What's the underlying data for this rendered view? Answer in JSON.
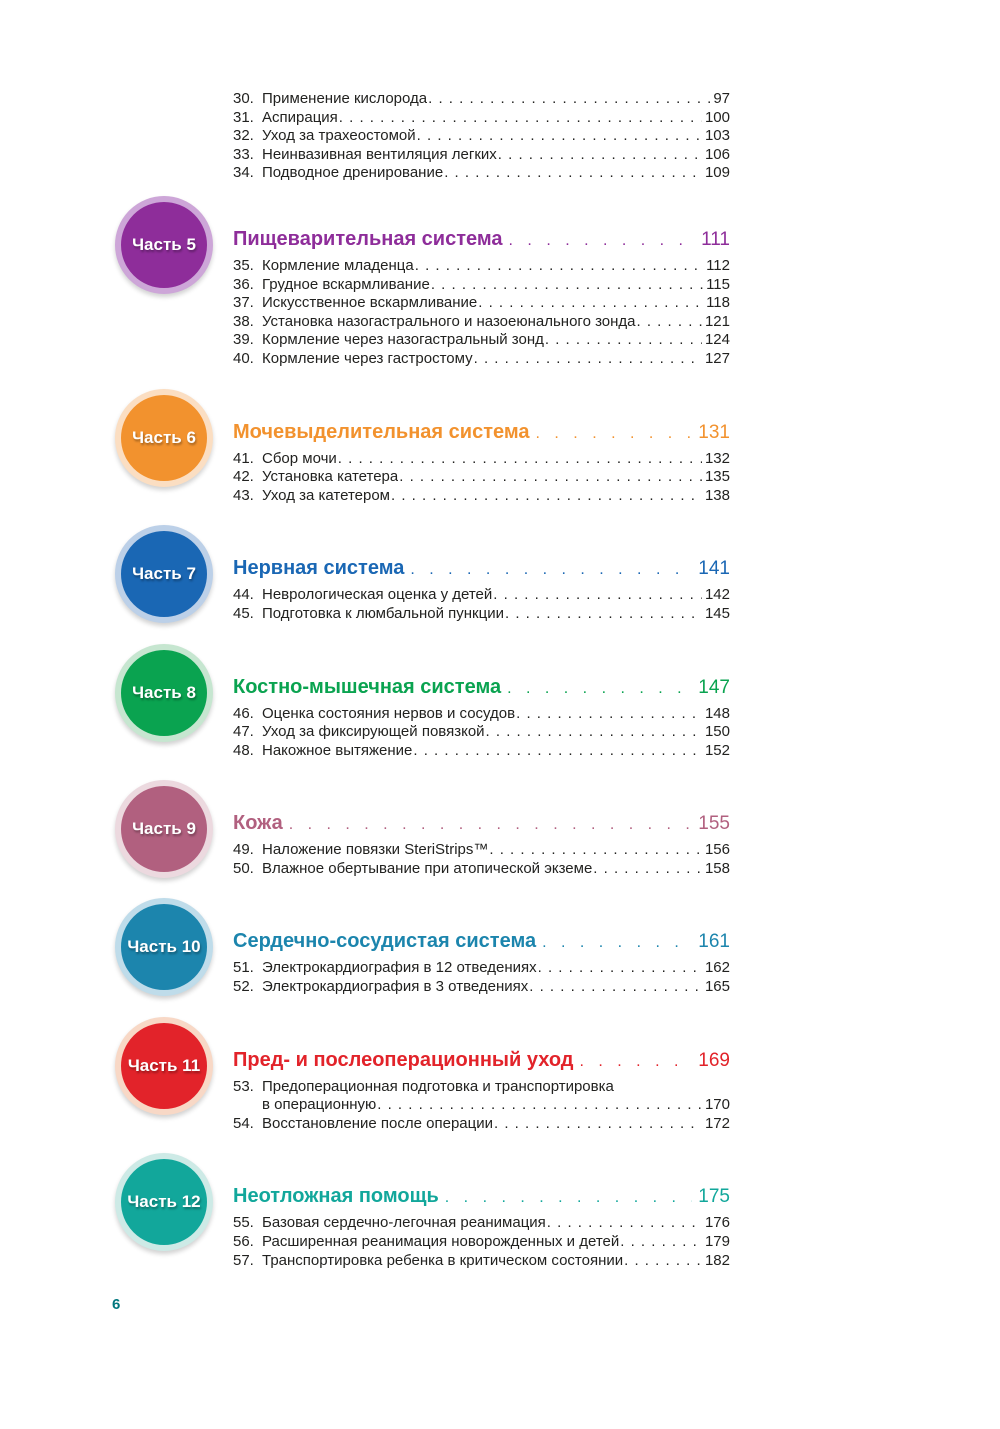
{
  "page": {
    "number": "6",
    "number_color": "#00767d"
  },
  "intro_items": [
    {
      "num": "30.",
      "title": "Применение кислорода",
      "page": "97"
    },
    {
      "num": "31.",
      "title": "Аспирация",
      "page": "100"
    },
    {
      "num": "32.",
      "title": "Уход за трахеостомой",
      "page": "103"
    },
    {
      "num": "33.",
      "title": "Неинвазивная вентиляция легких",
      "page": "106"
    },
    {
      "num": "34.",
      "title": "Подводное дренирование",
      "page": "109"
    }
  ],
  "sections": [
    {
      "badge": "Часть 5",
      "title": "Пищеварительная система",
      "page": "111",
      "color": "#8e2d9a",
      "ring": "#cda6d8",
      "items": [
        {
          "num": "35.",
          "title": "Кормление младенца",
          "page": "112"
        },
        {
          "num": "36.",
          "title": "Грудное вскармливание",
          "page": "115"
        },
        {
          "num": "37.",
          "title": "Искусственное вскармливание",
          "page": "118"
        },
        {
          "num": "38.",
          "title": "Установка назогастрального и назоеюнального зонда",
          "page": "121"
        },
        {
          "num": "39.",
          "title": "Кормление через назогастральный зонд",
          "page": "124"
        },
        {
          "num": "40.",
          "title": "Кормление через гастростому",
          "page": "127"
        }
      ]
    },
    {
      "badge": "Часть 6",
      "title": "Мочевыделительная система",
      "page": "131",
      "color": "#f2922e",
      "ring": "#fbdec2",
      "items": [
        {
          "num": "41.",
          "title": "Сбор мочи",
          "page": "132"
        },
        {
          "num": "42.",
          "title": "Установка катетера",
          "page": "135"
        },
        {
          "num": "43.",
          "title": "Уход за катетером",
          "page": "138"
        }
      ]
    },
    {
      "badge": "Часть 7",
      "title": "Нервная система",
      "page": "141",
      "color": "#1a67b4",
      "ring": "#bcd0e8",
      "items": [
        {
          "num": "44.",
          "title": "Неврологическая оценка у детей",
          "page": "142"
        },
        {
          "num": "45.",
          "title": "Подготовка к люмбальной пункции",
          "page": "145"
        }
      ]
    },
    {
      "badge": "Часть 8",
      "title": "Костно-мышечная система",
      "page": "147",
      "color": "#0aa350",
      "ring": "#c6e6d0",
      "items": [
        {
          "num": "46.",
          "title": "Оценка состояния нервов и сосудов",
          "page": "148"
        },
        {
          "num": "47.",
          "title": "Уход за фиксирующей повязкой",
          "page": "150"
        },
        {
          "num": "48.",
          "title": "Накожное вытяжение",
          "page": "152"
        }
      ]
    },
    {
      "badge": "Часть 9",
      "title": "Кожа",
      "page": "155",
      "color": "#b1607f",
      "ring": "#ecd9df",
      "items": [
        {
          "num": "49.",
          "title": "Наложение повязки SteriStrips™",
          "page": "156"
        },
        {
          "num": "50.",
          "title": "Влажное обертывание при атопической экземе",
          "page": "158"
        }
      ]
    },
    {
      "badge": "Часть 10",
      "title": "Сердечно-сосудистая система",
      "page": "161",
      "color": "#1c85ad",
      "ring": "#bfdcea",
      "items": [
        {
          "num": "51.",
          "title": "Электрокардиография в 12 отведениях",
          "page": "162"
        },
        {
          "num": "52.",
          "title": "Электрокардиография в 3 отведениях",
          "page": "165"
        }
      ]
    },
    {
      "badge": "Часть 11",
      "title": "Пред- и послеоперационный уход",
      "page": "169",
      "color": "#e2232a",
      "ring": "#f8d8c6",
      "items": [
        {
          "num": "53.",
          "title": "Предоперационная подготовка и транспортировка",
          "title2": "в операционную",
          "page": "170"
        },
        {
          "num": "54.",
          "title": "Восстановление после операции",
          "page": "172"
        }
      ]
    },
    {
      "badge": "Часть 12",
      "title": "Неотложная помощь",
      "page": "175",
      "color": "#12a79b",
      "ring": "#cdeae6",
      "items": [
        {
          "num": "55.",
          "title": "Базовая сердечно-легочная реанимация",
          "page": "176"
        },
        {
          "num": "56.",
          "title": "Расширенная реанимация новорожденных и детей",
          "page": "179"
        },
        {
          "num": "57.",
          "title": "Транспортировка ребенка в критическом состоянии",
          "page": "182"
        }
      ]
    }
  ]
}
